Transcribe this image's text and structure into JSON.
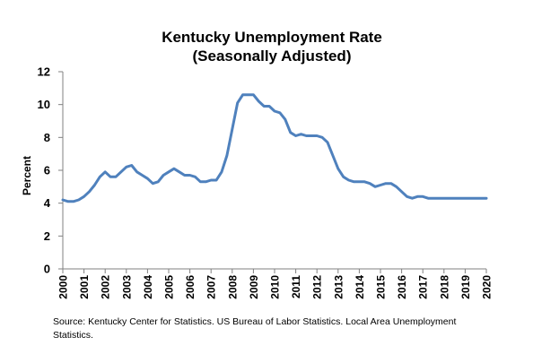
{
  "chart_data": {
    "type": "line",
    "title": "Kentucky Unemployment Rate",
    "subtitle": "(Seasonally Adjusted)",
    "xlabel": "",
    "ylabel": "Percent",
    "xlim": [
      2000,
      2020
    ],
    "ylim": [
      0,
      12
    ],
    "y_ticks": [
      "0",
      "2",
      "4",
      "6",
      "8",
      "10",
      "12"
    ],
    "x_ticks": [
      "2000",
      "2001",
      "2002",
      "2003",
      "2004",
      "2005",
      "2006",
      "2007",
      "2008",
      "2009",
      "2010",
      "2011",
      "2012",
      "2013",
      "2014",
      "2015",
      "2016",
      "2017",
      "2018",
      "2019",
      "2020"
    ],
    "grid": false,
    "legend": "none",
    "line_color": "#4f81bd",
    "series": [
      {
        "x": [
          2000.0,
          2000.25,
          2000.5,
          2000.75,
          2001.0,
          2001.25,
          2001.5,
          2001.75,
          2002.0,
          2002.25,
          2002.5,
          2002.75,
          2003.0,
          2003.25,
          2003.5,
          2003.75,
          2004.0,
          2004.25,
          2004.5,
          2004.75,
          2005.0,
          2005.25,
          2005.5,
          2005.75,
          2006.0,
          2006.25,
          2006.5,
          2006.75,
          2007.0,
          2007.25,
          2007.5,
          2007.75,
          2008.0,
          2008.25,
          2008.5,
          2008.75,
          2009.0,
          2009.25,
          2009.5,
          2009.75,
          2010.0,
          2010.25,
          2010.5,
          2010.75,
          2011.0,
          2011.25,
          2011.5,
          2011.75,
          2012.0,
          2012.25,
          2012.5,
          2012.75,
          2013.0,
          2013.25,
          2013.5,
          2013.75,
          2014.0,
          2014.25,
          2014.5,
          2014.75,
          2015.0,
          2015.25,
          2015.5,
          2015.75,
          2016.0,
          2016.25,
          2016.5,
          2016.75,
          2017.0,
          2017.25,
          2017.5,
          2017.75,
          2018.0,
          2018.25,
          2018.5,
          2018.75,
          2019.0,
          2019.25,
          2019.5,
          2019.75,
          2020.0
        ],
        "values": [
          4.2,
          4.1,
          4.1,
          4.2,
          4.4,
          4.7,
          5.1,
          5.6,
          5.9,
          5.6,
          5.6,
          5.9,
          6.2,
          6.3,
          5.9,
          5.7,
          5.5,
          5.2,
          5.3,
          5.7,
          5.9,
          6.1,
          5.9,
          5.7,
          5.7,
          5.6,
          5.3,
          5.3,
          5.4,
          5.4,
          5.9,
          6.9,
          8.5,
          10.1,
          10.6,
          10.6,
          10.6,
          10.2,
          9.9,
          9.9,
          9.6,
          9.5,
          9.1,
          8.3,
          8.1,
          8.2,
          8.1,
          8.1,
          8.1,
          8.0,
          7.7,
          6.9,
          6.1,
          5.6,
          5.4,
          5.3,
          5.3,
          5.3,
          5.2,
          5.0,
          5.1,
          5.2,
          5.2,
          5.0,
          4.7,
          4.4,
          4.3,
          4.4,
          4.4,
          4.3,
          4.3,
          4.3,
          4.3,
          4.3,
          4.3,
          4.3,
          4.3,
          4.3,
          4.3,
          4.3,
          4.3
        ]
      }
    ]
  },
  "source_note": "Source: Kentucky Center for Statistics. US Bureau of Labor Statistics. Local Area Unemployment Statistics."
}
